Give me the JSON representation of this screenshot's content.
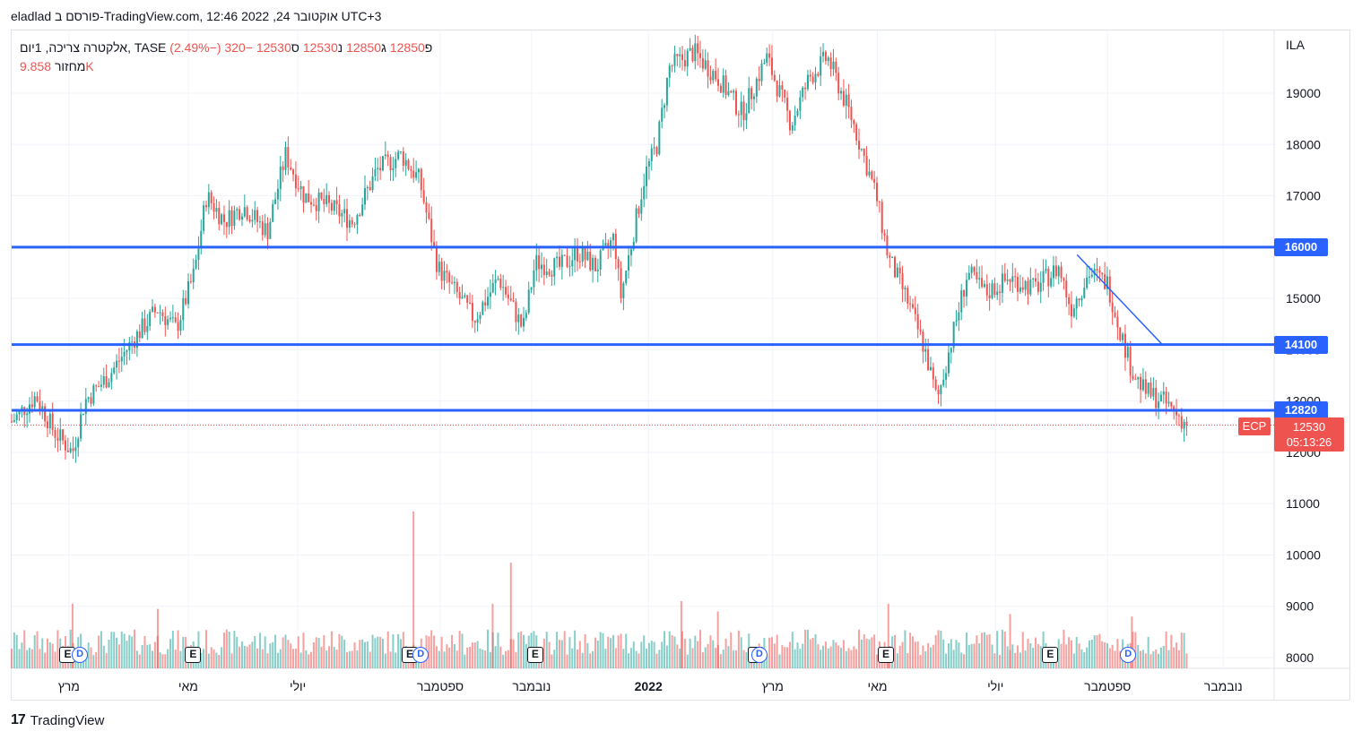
{
  "header": {
    "text": "eladlad פורסם ב-TradingView.com, 12:46 2022 ,24 אוקטובר UTC+3"
  },
  "legend": {
    "symbol": "אלקטרה צריכה, 1יום, TASE",
    "open_label": "פ",
    "open": "12850",
    "high_label": "ג",
    "high": "12850",
    "low_label": "נ",
    "low": "12530",
    "close_label": "ס",
    "close": "12530",
    "change": "−320 (−2.49%)",
    "volume_label": "מחזור",
    "volume": "9.858K"
  },
  "currency": "ILA",
  "last_price": {
    "value": "12530",
    "countdown": "05:13:26",
    "ecp": "ECP"
  },
  "horizontal_lines": [
    {
      "label": "16000",
      "value": 16000
    },
    {
      "label": "14100",
      "value": 14100
    },
    {
      "label": "12820",
      "value": 12820
    }
  ],
  "events": {
    "earnings_symbol": "E",
    "dividend_symbol": "D"
  },
  "brand": "TradingView",
  "colors": {
    "up": "#26a69a",
    "down": "#ef5350",
    "level_line": "#2962ff",
    "grid": "#f0f3fa"
  },
  "chart_data": {
    "type": "candlestick",
    "title": "אלקטרה צריכה, 1יום, TASE",
    "ylim": [
      7800,
      20200
    ],
    "y_ticks": [
      8000,
      9000,
      10000,
      11000,
      12000,
      13000,
      14000,
      15000,
      16000,
      17000,
      18000,
      19000
    ],
    "x_ticks": [
      "מרץ",
      "מאי",
      "יולי",
      "ספטמבר",
      "נובמבר",
      "2022",
      "מרץ",
      "מאי",
      "יולי",
      "ספטמבר",
      "נובמבר"
    ],
    "price_path": [
      [
        0,
        12600
      ],
      [
        0.02,
        13100
      ],
      [
        0.035,
        12400
      ],
      [
        0.05,
        12000
      ],
      [
        0.06,
        13000
      ],
      [
        0.08,
        13500
      ],
      [
        0.1,
        14200
      ],
      [
        0.12,
        14800
      ],
      [
        0.135,
        14400
      ],
      [
        0.15,
        15500
      ],
      [
        0.16,
        17000
      ],
      [
        0.175,
        16500
      ],
      [
        0.19,
        16800
      ],
      [
        0.21,
        16300
      ],
      [
        0.225,
        17800
      ],
      [
        0.24,
        17000
      ],
      [
        0.26,
        16800
      ],
      [
        0.28,
        16500
      ],
      [
        0.3,
        17500
      ],
      [
        0.32,
        17800
      ],
      [
        0.335,
        17300
      ],
      [
        0.35,
        15600
      ],
      [
        0.365,
        15100
      ],
      [
        0.38,
        14600
      ],
      [
        0.4,
        15400
      ],
      [
        0.42,
        14400
      ],
      [
        0.43,
        15700
      ],
      [
        0.45,
        15600
      ],
      [
        0.465,
        15900
      ],
      [
        0.48,
        15600
      ],
      [
        0.495,
        16200
      ],
      [
        0.5,
        15000
      ],
      [
        0.51,
        16200
      ],
      [
        0.52,
        17400
      ],
      [
        0.53,
        18000
      ],
      [
        0.54,
        19500
      ],
      [
        0.56,
        19800
      ],
      [
        0.58,
        19300
      ],
      [
        0.6,
        18600
      ],
      [
        0.62,
        19700
      ],
      [
        0.64,
        18400
      ],
      [
        0.655,
        19300
      ],
      [
        0.67,
        19700
      ],
      [
        0.69,
        18500
      ],
      [
        0.71,
        17000
      ],
      [
        0.72,
        15800
      ],
      [
        0.735,
        15000
      ],
      [
        0.75,
        14000
      ],
      [
        0.76,
        13000
      ],
      [
        0.775,
        14500
      ],
      [
        0.785,
        15500
      ],
      [
        0.8,
        15100
      ],
      [
        0.82,
        15400
      ],
      [
        0.84,
        15200
      ],
      [
        0.86,
        15600
      ],
      [
        0.87,
        14800
      ],
      [
        0.885,
        15500
      ],
      [
        0.9,
        15300
      ],
      [
        0.91,
        14400
      ],
      [
        0.92,
        13600
      ],
      [
        0.93,
        13200
      ],
      [
        0.945,
        13000
      ],
      [
        0.955,
        12800
      ],
      [
        0.965,
        12530
      ]
    ],
    "volume_spikes": [
      [
        0.05,
        9050
      ],
      [
        0.12,
        8950
      ],
      [
        0.33,
        10850
      ],
      [
        0.41,
        9850
      ],
      [
        0.395,
        9050
      ],
      [
        0.55,
        9100
      ],
      [
        0.58,
        8900
      ],
      [
        0.72,
        9050
      ],
      [
        0.82,
        8850
      ],
      [
        0.92,
        8800
      ]
    ],
    "trendline": {
      "from": [
        0.875,
        15850
      ],
      "to": [
        0.945,
        14100
      ]
    },
    "earnings_positions": [
      0.046,
      0.149,
      0.327,
      0.43,
      0.611,
      0.718,
      0.853
    ],
    "dividend_positions": [
      0.056,
      0.336,
      0.614,
      0.917
    ]
  }
}
